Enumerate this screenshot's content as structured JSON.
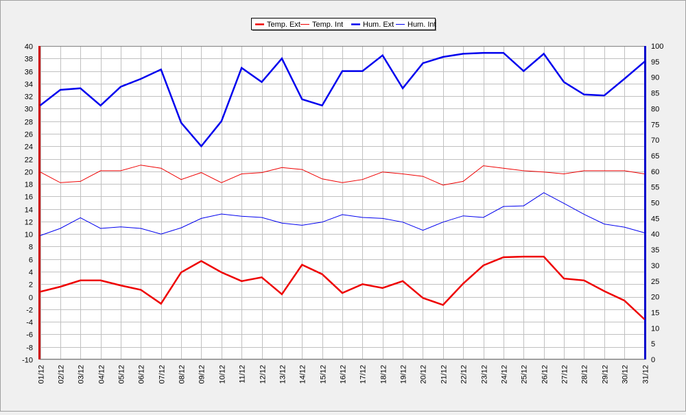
{
  "chart_data": {
    "type": "line",
    "x": [
      "01/12",
      "02/12",
      "03/12",
      "04/12",
      "05/12",
      "06/12",
      "07/12",
      "08/12",
      "09/12",
      "10/12",
      "11/12",
      "12/12",
      "13/12",
      "14/12",
      "15/12",
      "16/12",
      "17/12",
      "18/12",
      "19/12",
      "20/12",
      "21/12",
      "22/12",
      "23/12",
      "24/12",
      "25/12",
      "26/12",
      "27/12",
      "28/12",
      "29/12",
      "30/12",
      "31/12"
    ],
    "y_left": {
      "ylim": [
        -10,
        40
      ],
      "ticks": [
        -10,
        -8,
        -6,
        -4,
        -2,
        0,
        2,
        4,
        6,
        8,
        10,
        12,
        14,
        16,
        18,
        20,
        22,
        24,
        26,
        28,
        30,
        32,
        34,
        36,
        38,
        40
      ]
    },
    "y_right": {
      "ylim": [
        0,
        100
      ],
      "ticks": [
        0,
        5,
        10,
        15,
        20,
        25,
        30,
        35,
        40,
        45,
        50,
        55,
        60,
        65,
        70,
        75,
        80,
        85,
        90,
        95,
        100
      ]
    },
    "grid": true,
    "legend_position": "top-center",
    "series": [
      {
        "name": "Temp. Ext",
        "axis": "left",
        "color": "#ee0000",
        "width": 2.5,
        "values": [
          0.8,
          1.6,
          2.6,
          2.6,
          1.8,
          1.1,
          -1.1,
          3.9,
          5.7,
          3.9,
          2.5,
          3.1,
          0.4,
          5.1,
          3.6,
          0.6,
          2.0,
          1.4,
          2.5,
          -0.2,
          -1.3,
          2.1,
          5.0,
          6.3,
          6.4,
          6.4,
          2.9,
          2.6,
          0.9,
          -0.6,
          -3.6
        ]
      },
      {
        "name": "Temp. Int",
        "axis": "left",
        "color": "#ee0000",
        "width": 1,
        "values": [
          19.9,
          18.2,
          18.4,
          20.1,
          20.1,
          21.0,
          20.5,
          18.7,
          19.8,
          18.2,
          19.6,
          19.8,
          20.6,
          20.3,
          18.8,
          18.2,
          18.7,
          19.9,
          19.6,
          19.2,
          17.8,
          18.4,
          20.9,
          20.5,
          20.1,
          19.9,
          19.6,
          20.1,
          20.1,
          20.1,
          19.6
        ]
      },
      {
        "name": "Hum. Ext",
        "axis": "right",
        "color": "#0000ee",
        "width": 2.5,
        "values": [
          81,
          86,
          86.5,
          81,
          87,
          89.5,
          92.5,
          75.5,
          68,
          76,
          93,
          88.5,
          96,
          83,
          81,
          92,
          92,
          97,
          86.5,
          94.5,
          96.5,
          97.5,
          97.8,
          97.8,
          92,
          97.5,
          88.5,
          84.5,
          84.2,
          89.5,
          95
        ]
      },
      {
        "name": "Hum. Int",
        "axis": "right",
        "color": "#0000ee",
        "width": 1,
        "values": [
          39.5,
          41.8,
          45.2,
          41.8,
          42.3,
          41.8,
          40,
          42,
          45,
          46.4,
          45.7,
          45.3,
          43.5,
          42.8,
          43.8,
          46.2,
          45.3,
          45,
          43.8,
          41.2,
          43.8,
          45.8,
          45.3,
          48.8,
          49,
          53.2,
          49.8,
          46.3,
          43.2,
          42.2,
          40.4
        ]
      }
    ]
  }
}
